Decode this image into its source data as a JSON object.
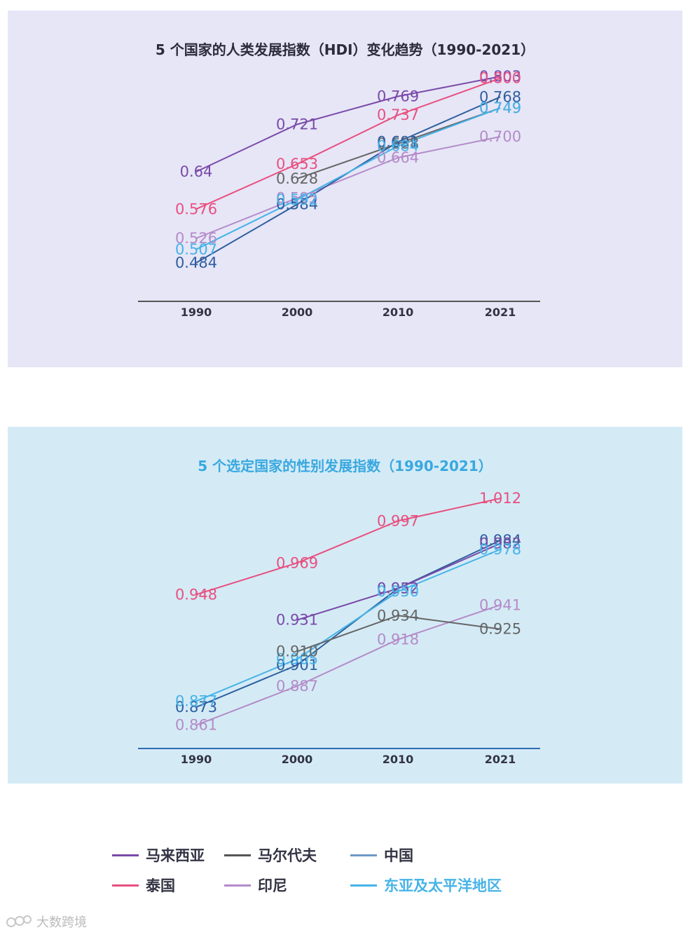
{
  "chart_data": [
    {
      "type": "line",
      "title": "5 个国家的人类发展指数（HDI）变化趋势（1990-2021）",
      "x": [
        "1990",
        "2000",
        "2010",
        "2021"
      ],
      "ylim": [
        0.43,
        0.82
      ],
      "series": [
        {
          "name": "马来西亚",
          "color": "#7a4aa8",
          "values": [
            0.64,
            0.721,
            0.769,
            0.803
          ],
          "labels": [
            "0.64",
            "0.721",
            "0.769",
            "0.803"
          ]
        },
        {
          "name": "泰国",
          "color": "#e8507f",
          "values": [
            0.576,
            0.653,
            0.737,
            0.8
          ],
          "labels": [
            "0.576",
            "0.653",
            "0.737",
            "0.800"
          ]
        },
        {
          "name": "马尔代夫",
          "color": "#666666",
          "values": [
            null,
            0.628,
            0.688,
            0.749
          ],
          "labels": [
            "",
            "0.628",
            "0.688",
            "0.749"
          ]
        },
        {
          "name": "印尼",
          "color": "#b48bc8",
          "values": [
            0.526,
            0.595,
            0.664,
            0.7
          ],
          "labels": [
            "0.526",
            "0.595",
            "0.664",
            "0.700"
          ]
        },
        {
          "name": "中国",
          "color": "#2f5f9e",
          "values": [
            0.484,
            0.584,
            0.691,
            0.768
          ],
          "labels": [
            "0.484",
            "0.584",
            "0.691",
            "0.768"
          ]
        },
        {
          "name": "东亚及太平洋地区",
          "color": "#46b3e8",
          "values": [
            0.507,
            0.592,
            0.684,
            0.749
          ],
          "labels": [
            "0.507",
            "0.592",
            "0.684",
            "0.749"
          ]
        }
      ]
    },
    {
      "type": "line",
      "title": "5 个选定国家的性别发展指数（1990-2021）",
      "x": [
        "1990",
        "2000",
        "2010",
        "2021"
      ],
      "ylim": [
        0.845,
        1.02
      ],
      "series": [
        {
          "name": "泰国",
          "color": "#e8507f",
          "values": [
            0.948,
            0.969,
            0.997,
            1.012
          ],
          "labels": [
            "0.948",
            "0.969",
            "0.997",
            "1.012"
          ]
        },
        {
          "name": "中国",
          "color": "#2f5f9e",
          "values": [
            0.873,
            0.901,
            0.952,
            0.984
          ],
          "labels": [
            "0.873",
            "0.901",
            "0.952",
            "0.984"
          ]
        },
        {
          "name": "马来西亚",
          "color": "#7a4aa8",
          "values": [
            null,
            0.931,
            0.952,
            0.982
          ],
          "labels": [
            "",
            "0.931",
            "0.952",
            "0.982"
          ]
        },
        {
          "name": "东亚及太平洋地区",
          "color": "#46b3e8",
          "values": [
            0.877,
            0.905,
            0.95,
            0.978
          ],
          "labels": [
            "0.877",
            "0.905",
            "0.950",
            "0.978"
          ]
        },
        {
          "name": "印尼",
          "color": "#b48bc8",
          "values": [
            0.861,
            0.887,
            0.918,
            0.941
          ],
          "labels": [
            "0.861",
            "0.887",
            "0.918",
            "0.941"
          ]
        },
        {
          "name": "马尔代夫",
          "color": "#666666",
          "values": [
            null,
            0.91,
            0.934,
            0.925
          ],
          "labels": [
            "",
            "0.910",
            "0.934",
            "0.925"
          ]
        }
      ]
    }
  ],
  "legend": [
    {
      "label": "马来西亚",
      "color": "#7a4aa8"
    },
    {
      "label": "马尔代夫",
      "color": "#555555"
    },
    {
      "label": "中国",
      "color": "#6f98c8"
    },
    {
      "label": "泰国",
      "color": "#e8507f"
    },
    {
      "label": "印尼",
      "color": "#b48bc8"
    },
    {
      "label": "东亚及太平洋地区",
      "color": "#46b3e8"
    }
  ],
  "watermark": "大数跨境"
}
